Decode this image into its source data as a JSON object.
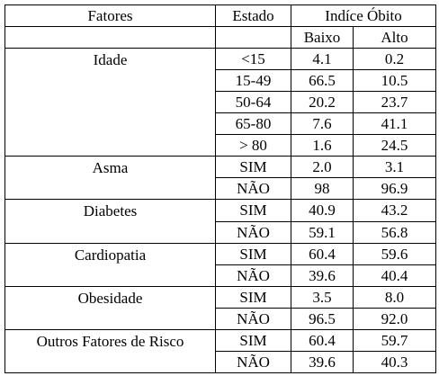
{
  "headers": {
    "fatores": "Fatores",
    "estado": "Estado",
    "indice": "Indíce Óbito",
    "baixo": "Baixo",
    "alto": "Alto"
  },
  "groups": [
    {
      "factor": "Idade",
      "rows": [
        {
          "estado": "<15",
          "baixo": "4.1",
          "alto": "0.2"
        },
        {
          "estado": "15-49",
          "baixo": "66.5",
          "alto": "10.5"
        },
        {
          "estado": "50-64",
          "baixo": "20.2",
          "alto": "23.7"
        },
        {
          "estado": "65-80",
          "baixo": "7.6",
          "alto": "41.1"
        },
        {
          "estado": "> 80",
          "baixo": "1.6",
          "alto": "24.5"
        }
      ]
    },
    {
      "factor": "Asma",
      "rows": [
        {
          "estado": "SIM",
          "baixo": "2.0",
          "alto": "3.1"
        },
        {
          "estado": "NÃO",
          "baixo": "98",
          "alto": "96.9"
        }
      ]
    },
    {
      "factor": "Diabetes",
      "rows": [
        {
          "estado": "SIM",
          "baixo": "40.9",
          "alto": "43.2"
        },
        {
          "estado": "NÃO",
          "baixo": "59.1",
          "alto": "56.8"
        }
      ]
    },
    {
      "factor": "Cardiopatia",
      "rows": [
        {
          "estado": "SIM",
          "baixo": "60.4",
          "alto": "59.6"
        },
        {
          "estado": "NÃO",
          "baixo": "39.6",
          "alto": "40.4"
        }
      ]
    },
    {
      "factor": "Obesidade",
      "rows": [
        {
          "estado": "SIM",
          "baixo": "3.5",
          "alto": "8.0"
        },
        {
          "estado": "NÃO",
          "baixo": "96.5",
          "alto": "92.0"
        }
      ]
    },
    {
      "factor": "Outros Fatores de Risco",
      "rows": [
        {
          "estado": "SIM",
          "baixo": "60.4",
          "alto": "59.7"
        },
        {
          "estado": "NÃO",
          "baixo": "39.6",
          "alto": "40.3"
        }
      ]
    }
  ]
}
